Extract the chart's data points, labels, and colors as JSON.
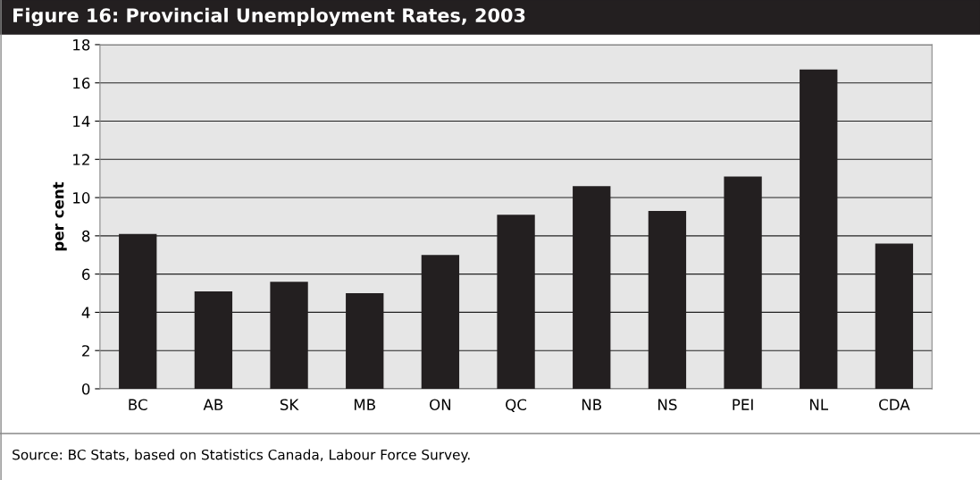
{
  "chart_data": {
    "type": "bar",
    "title": "Figure 16: Provincial Unemployment Rates, 2003",
    "ylabel": "per cent",
    "categories": [
      "BC",
      "AB",
      "SK",
      "MB",
      "ON",
      "QC",
      "NB",
      "NS",
      "PEI",
      "NL",
      "CDA"
    ],
    "values": [
      8.1,
      5.1,
      5.6,
      5.0,
      7.0,
      9.1,
      10.6,
      9.3,
      11.1,
      16.7,
      7.6
    ],
    "color": "#231f20",
    "ylim": [
      0,
      18
    ],
    "yticks": [
      0,
      2,
      4,
      6,
      8,
      10,
      12,
      14,
      16,
      18
    ],
    "grid": "y",
    "annotations": [
      "Source: BC Stats, based on Statistics Canada, Labour Force Survey."
    ]
  }
}
